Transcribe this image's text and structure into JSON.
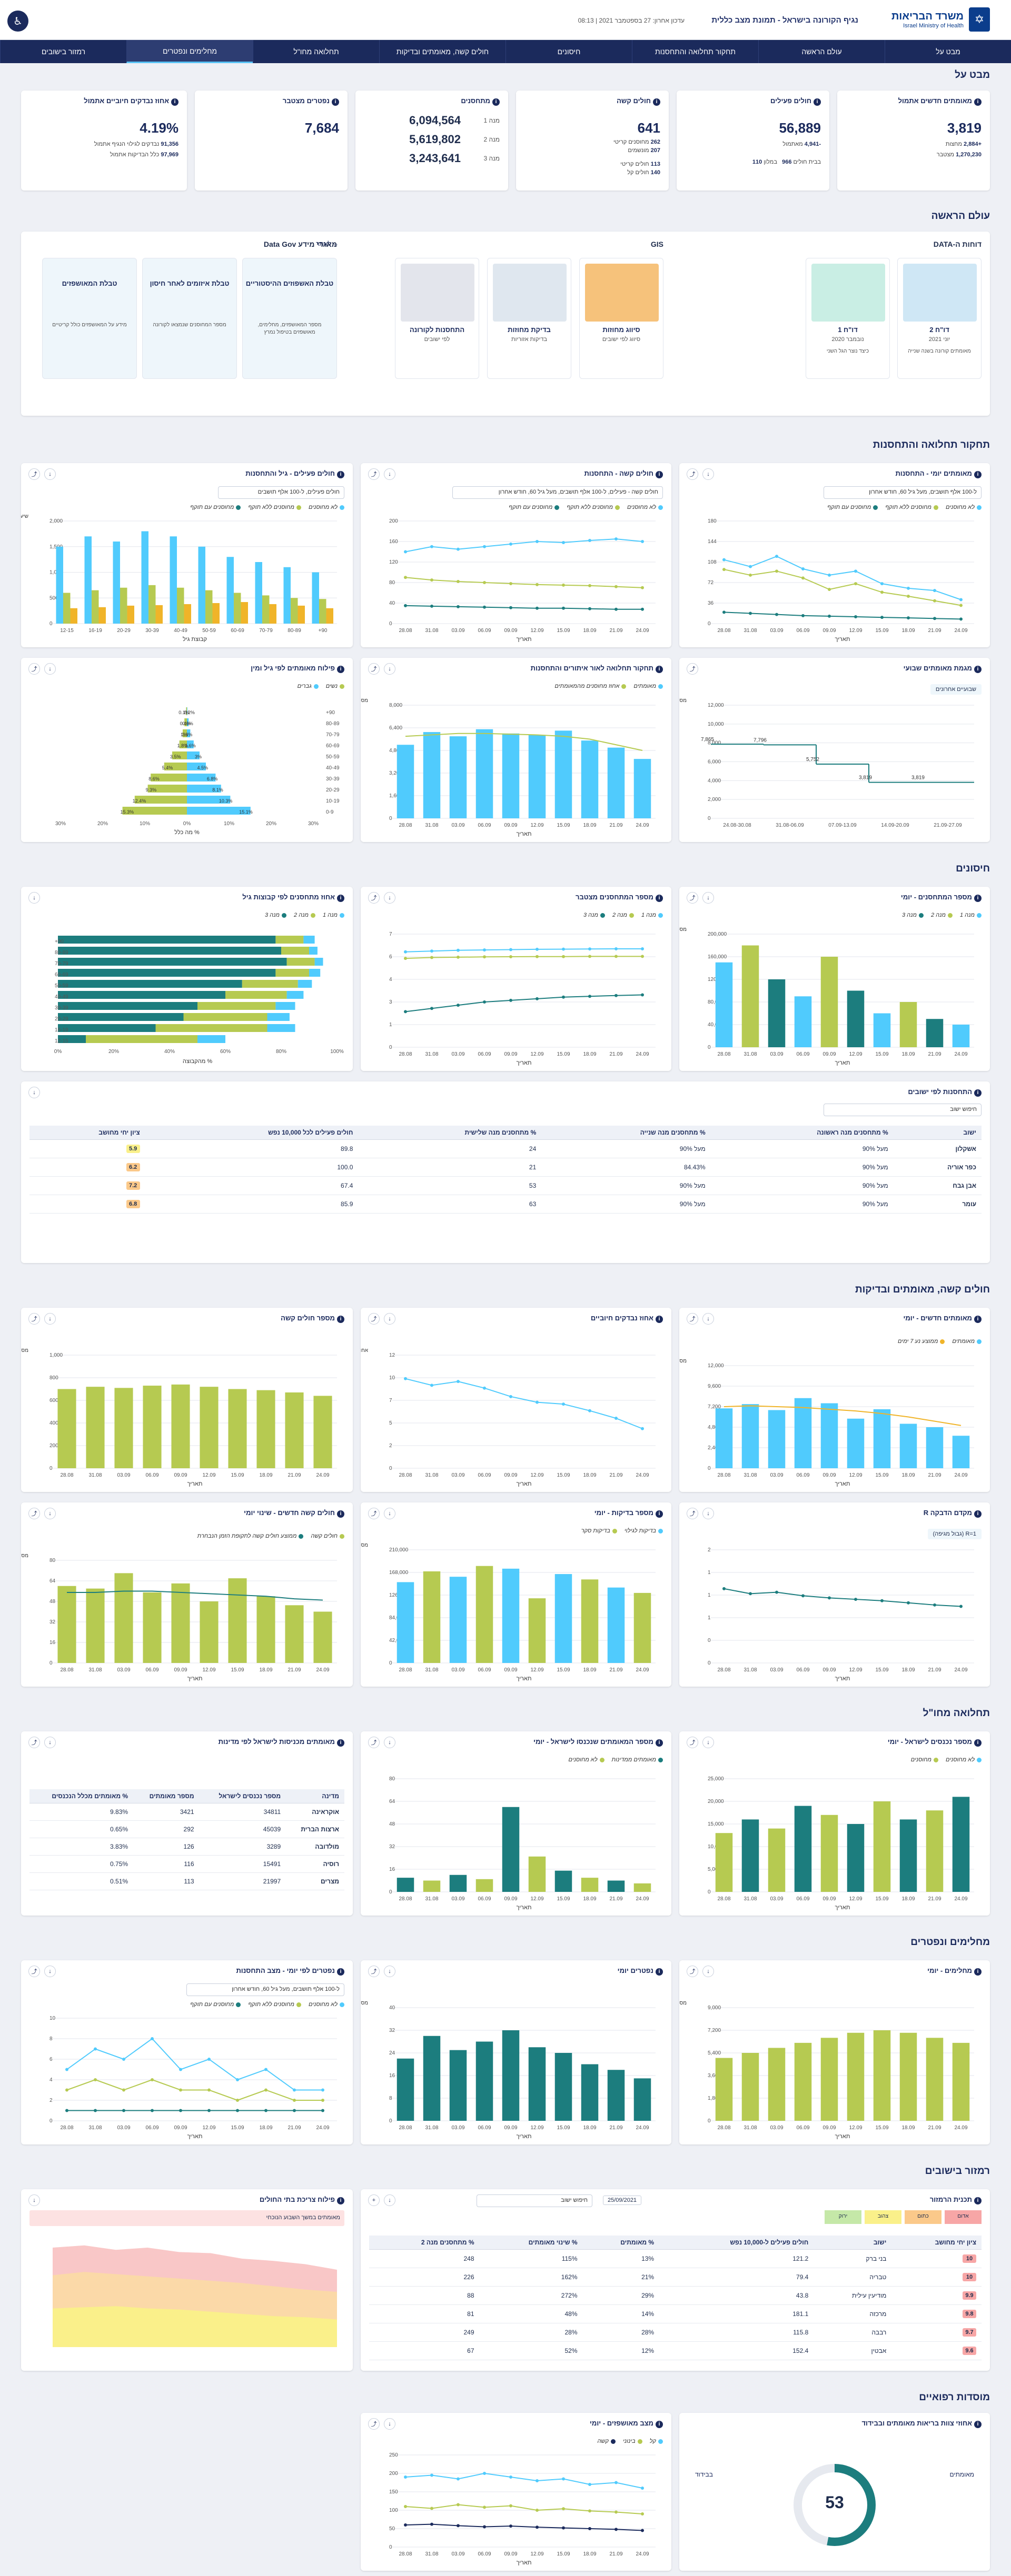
{
  "header": {
    "ministry_he": "משרד הבריאות",
    "ministry_en": "Israel Ministry of Health",
    "title": "נגיף הקורונה בישראל - תמונת מצב כללית",
    "date": "עדכון אחרון: 27 בספטמבר 2021 | 08:13"
  },
  "nav": [
    "מבט על",
    "עולם הראשה",
    "תחקור תחלואה והתחסנות",
    "חיסונים",
    "חולים קשה, מאומתים ובדיקות",
    "תחלואה מחו\"ל",
    "מחלימים ונפטרים",
    "רמזור בישובים"
  ],
  "sections": {
    "overview": "מבט על",
    "research_world": "עולם הראשה",
    "morbidity": "תחקור תחלואה והתחסנות",
    "vaccines": "חיסונים",
    "severe": "חולים קשה, מאומתים ובדיקות",
    "abroad": "תחלואה מחו\"ל",
    "recovered": "מחלימים ונפטרים",
    "traffic": "רמזור בישובים",
    "hospitals": "מוסדות רפואיים"
  },
  "kpis": [
    {
      "title": "מאומתים חדשים אתמול",
      "big": "3,819",
      "l1": "+2,884",
      "l1t": "מחצות",
      "l2": "1,270,230",
      "l2t": "מצטבר"
    },
    {
      "title": "חולים פעילים",
      "big": "56,889",
      "l1": "-4,941",
      "l1t": "מאתמול",
      "l2": "966",
      "l2t": "בבית חולים",
      "l3": "110",
      "l3t": "במלון"
    },
    {
      "title": "חולים קשה",
      "big": "641",
      "l1": "262",
      "l1t": "מחוסנים קריטי",
      "l2": "207",
      "l2t": "מונשמים",
      "l3": "113",
      "l3t": "חולים קריטי",
      "l4": "140",
      "l4t": "חולים קל"
    },
    {
      "title": "מתחסנים",
      "big": "6,094,564",
      "big2": "5,619,802",
      "big3": "3,243,641",
      "n1": "מנה 1",
      "n2": "מנה 2",
      "n3": "מנה 3"
    },
    {
      "title": "נפטרים מצטבר",
      "big": "7,684"
    },
    {
      "title": "אחוז נבדקים חיוביים אתמול",
      "big": "4.19%",
      "l1": "91,356",
      "l1t": "נבדקים לגילוי הנגיף אתמול",
      "l2": "97,969",
      "l2t": "כלל הבדיקות אתמול"
    }
  ],
  "research": {
    "data_title": "דוחות ה-DATA",
    "gis_title": "GIS",
    "gov_title": "מאגרי מידע Data Gov",
    "gov_more": "לאתר",
    "cards": [
      {
        "t": "דו\"ח 2",
        "s": "יוני 2021",
        "d": "מאומתים קורונה בשנה שנייה"
      },
      {
        "t": "דו\"ח 1",
        "s": "נובמבר 2020",
        "d": "כיצד נוצר הגל השני"
      },
      {
        "t": "סיווג מחוזות",
        "s": "סיווג לפי ישובים"
      },
      {
        "t": "בדיקת מחוזות",
        "s": "בדיקות אזוריות"
      },
      {
        "t": "התחסנות לקורונה",
        "s": "לפי ישובים"
      }
    ],
    "tables": [
      {
        "t": "טבלת האשפוזים ההיסטוריים",
        "d": "מספר המאושפזים, מחלימים, מאושפזים בטיפול נמרץ"
      },
      {
        "t": "טבלת איזומים לאחר חיסון",
        "d": "מספר המחוסנים שנמצאו לקורונה"
      },
      {
        "t": "טבלת המאושפזים",
        "d": "מידע על המאושפזים כולל קריטיים"
      }
    ]
  },
  "charts": {
    "c1": {
      "title": "מאומתים יומי - התחסנות",
      "sub": "ל-100 אלף תושבים, מעל גיל 60, חודש אחרון",
      "leg": [
        "לא מחוסנים",
        "מחוסנים ללא תוקף",
        "מחוסנים עם תוקף"
      ],
      "xlab": "תאריך"
    },
    "c2": {
      "title": "חולים קשה - התחסנות",
      "sub": "חולים קשה - פעילים, ל-100 אלף תושבים, מעל גיל 60, חודש אחרון",
      "leg": [
        "לא מחוסנים",
        "מחוסנים ללא תוקף",
        "מחוסנים עם תוקף"
      ],
      "xlab": "תאריך"
    },
    "c3": {
      "title": "חולים פעילים - גיל והתחסנות",
      "sub": "חולים פעילים, ל-100 אלף תושבים",
      "leg": [
        "לא מחוסנים",
        "מחוסנים ללא תוקף",
        "מחוסנים עם תוקף"
      ],
      "xlab": "קבוצת גיל",
      "ylab": "שיעור חולים פעילים"
    },
    "c4": {
      "title": "מגמת מאומתים שבועי",
      "note": "שבועיים אחרונים",
      "xlab": "",
      "ylab": "מספר מאומתים"
    },
    "c5": {
      "title": "תחקור תחלואה לאור איתורים והתחסנות",
      "leg": [
        "מאומתים",
        "אחוז מחוסנים מהמאומתים"
      ],
      "xlab": "תאריך",
      "ylab": "מספר מאומתים יומי"
    },
    "c6": {
      "title": "פילוח מאומתים לפי גיל ומין",
      "leg": [
        "נשים",
        "גברים"
      ],
      "xlab": "% מה כלל",
      "ylab": "קבוצת גיל"
    },
    "c7": {
      "title": "מספר המתחסנים - יומי",
      "leg": [
        "מנה 1",
        "מנה 2",
        "מנה 3"
      ],
      "xlab": "תאריך",
      "ylab": "מספר מתחסנים"
    },
    "c8": {
      "title": "מספר המתחסנים מצטבר",
      "leg": [
        "מנה 1",
        "מנה 2",
        "מנה 3"
      ],
      "xlab": "תאריך"
    },
    "c9": {
      "title": "אחוז מתחסנים לפי קבוצות גיל",
      "leg": [
        "מנה 1",
        "מנה 2",
        "מנה 3"
      ],
      "xlab": "% מהקבוצה",
      "ylab": "קבוצת גיל"
    },
    "c10": {
      "title": "מאומתים חדשים - יומי",
      "leg": [
        "מאומתים",
        "ממוצע נע 7 ימים"
      ],
      "xlab": "תאריך",
      "ylab": "מספר מאומתים"
    },
    "c11": {
      "title": "אחוז נבדקים חיוביים",
      "xlab": "תאריך",
      "ylab": "אחוז חיוביים"
    },
    "c12": {
      "title": "מספר חולים קשה",
      "xlab": "תאריך",
      "ylab": "מספר חולים"
    },
    "c13": {
      "title": "מקדם הדבקה R",
      "note": "R=1 (גבול מגיפה)",
      "xlab": "תאריך"
    },
    "c14": {
      "title": "מספר בדיקות - יומי",
      "leg": [
        "בדיקות לגילוי",
        "בדיקות סקר"
      ],
      "xlab": "תאריך",
      "ylab": "מספר בדיקות"
    },
    "c15": {
      "title": "חולים קשה חדשים - שינוי יומי",
      "leg": [
        "חולים קשה",
        "ממוצע חולים קשה לתקופת הזמן הנבחרת"
      ],
      "xlab": "תאריך",
      "ylab": "מספר חולים"
    },
    "c16": {
      "title": "מספר נכנסים לישראל - יומי",
      "leg": [
        "לא מחוסנים",
        "מחוסנים"
      ],
      "xlab": "תאריך"
    },
    "c17": {
      "title": "מספר המאומתים שנכנסו לישראל - יומי",
      "leg": [
        "מאומתים ממדינות",
        "לא מחוסנים"
      ],
      "xlab": "תאריך"
    },
    "c18": {
      "title": "מאומתים מכניסות לישראל לפי מדינות"
    },
    "c19": {
      "title": "נפטרים יומי",
      "xlab": "תאריך",
      "ylab": "מספר נפטרים"
    },
    "c20": {
      "title": "מחלימים - יומי",
      "xlab": "תאריך",
      "ylab": "מספר מחלימים"
    },
    "c21": {
      "title": "נפטרים לפי יומי - מצב התחסנות",
      "sub": "ל-100 אלף תושבים, מעל גיל 60, חודש אחרון",
      "leg": [
        "לא מחוסנים",
        "מחוסנים ללא תוקף",
        "מחוסנים עם תוקף"
      ],
      "xlab": "תאריך"
    },
    "c22": {
      "title": "פילוח צריכת בתי החולים",
      "note": "מאומתים במשך השבוע הנוכחי"
    },
    "c23": {
      "title": "מצב מאושפזים - יומי",
      "leg": [
        "קל",
        "בינוני",
        "קשה"
      ],
      "xlab": "תאריך"
    },
    "c24": {
      "title": "אחוזי צוות בריאות מאומתים ובבידוד",
      "big": "53"
    }
  },
  "settlements": {
    "title": "התחסנות לפי ישובים",
    "search": "חיפוש ישוב",
    "cols": [
      "ישוב",
      "% מתחסנים מנה ראשונה",
      "% מתחסנים מנה שנייה",
      "% מתחסנים מנה שלישית",
      "חולים פעילים לכל 10,000 נפש",
      "ציון יחי מחושב"
    ],
    "rows": [
      [
        "אשקלון",
        "מעל 90%",
        "מעל 90%",
        "24",
        "89.8",
        "5.9"
      ],
      [
        "כפר אוריה",
        "מעל 90%",
        "84.43%",
        "21",
        "100.0",
        "6.2"
      ],
      [
        "אבן גבח",
        "מעל 90%",
        "מעל 90%",
        "53",
        "67.4",
        "7.2"
      ],
      [
        "עומר",
        "מעל 90%",
        "מעל 90%",
        "63",
        "85.9",
        "6.8"
      ]
    ]
  },
  "abroad_tbl": {
    "cols": [
      "מדינה",
      "מספר נכנסים לישראל",
      "מספר מאומתים",
      "% מאומתים מכלל הנכנסים"
    ],
    "rows": [
      [
        "אוקראינה",
        "34811",
        "3421",
        "9.83%"
      ],
      [
        "ארצות הברית",
        "45039",
        "292",
        "0.65%"
      ],
      [
        "מולדובה",
        "3289",
        "126",
        "3.83%"
      ],
      [
        "רוסיה",
        "15491",
        "116",
        "0.75%"
      ],
      [
        "מצרים",
        "21997",
        "113",
        "0.51%"
      ]
    ]
  },
  "traffic": {
    "title": "תכנית הרמזור",
    "date": "25/09/2021",
    "search": "חיפוש ישוב",
    "legend": [
      "אדום",
      "כתום",
      "צהוב",
      "ירוק"
    ],
    "cols": [
      "ציון יחי מחושב",
      "ישוב",
      "חולים פעילים ל-10,000 נפש",
      "% מאומתים",
      "% שינוי מאומתים",
      "% מתחסנים מנה 2"
    ],
    "rows": [
      [
        "10",
        "בני ברק",
        "121.2",
        "13%",
        "115%",
        "248"
      ],
      [
        "10",
        "טבריה",
        "79.4",
        "21%",
        "162%",
        "226"
      ],
      [
        "9.9",
        "מודיעין עילית",
        "43.8",
        "29%",
        "272%",
        "88"
      ],
      [
        "9.8",
        "מרכזה",
        "181.1",
        "14%",
        "48%",
        "81"
      ],
      [
        "9.7",
        "רבבה",
        "115.8",
        "28%",
        "28%",
        "249"
      ],
      [
        "9.6",
        "אבטין",
        "152.4",
        "12%",
        "52%",
        "67"
      ]
    ]
  },
  "hosp": {
    "staff_pct": "53",
    "label1": "מאומתים",
    "label2": "בבידוד"
  },
  "chart_data": [
    {
      "type": "line",
      "title": "מאומתים יומי - התחסנות",
      "x": [
        "28.08",
        "31.08",
        "03.09",
        "06.09",
        "09.09",
        "12.09",
        "15.09",
        "18.09",
        "21.09",
        "24.09"
      ],
      "series": [
        {
          "name": "לא מחוסנים",
          "values": [
            112,
            100,
            118,
            96,
            85,
            92,
            70,
            62,
            58,
            42
          ]
        },
        {
          "name": "מחוסנים ללא תוקף",
          "values": [
            95,
            85,
            92,
            80,
            60,
            70,
            55,
            48,
            40,
            32
          ]
        },
        {
          "name": "מחוסנים עם תוקף",
          "values": [
            20,
            18,
            16,
            14,
            13,
            12,
            11,
            10,
            9,
            8
          ]
        }
      ],
      "ylim": [
        0,
        180
      ]
    },
    {
      "type": "bar",
      "title": "מגמת מאומתים שבועי",
      "categories": [
        "24.08-30.08",
        "31.08-06.09",
        "07.09-13.09",
        "14.09-20.09",
        "21.09-27.09"
      ],
      "values": [
        7865,
        7796,
        5752,
        3819,
        3819
      ],
      "ylim": [
        0,
        12000
      ]
    }
  ]
}
